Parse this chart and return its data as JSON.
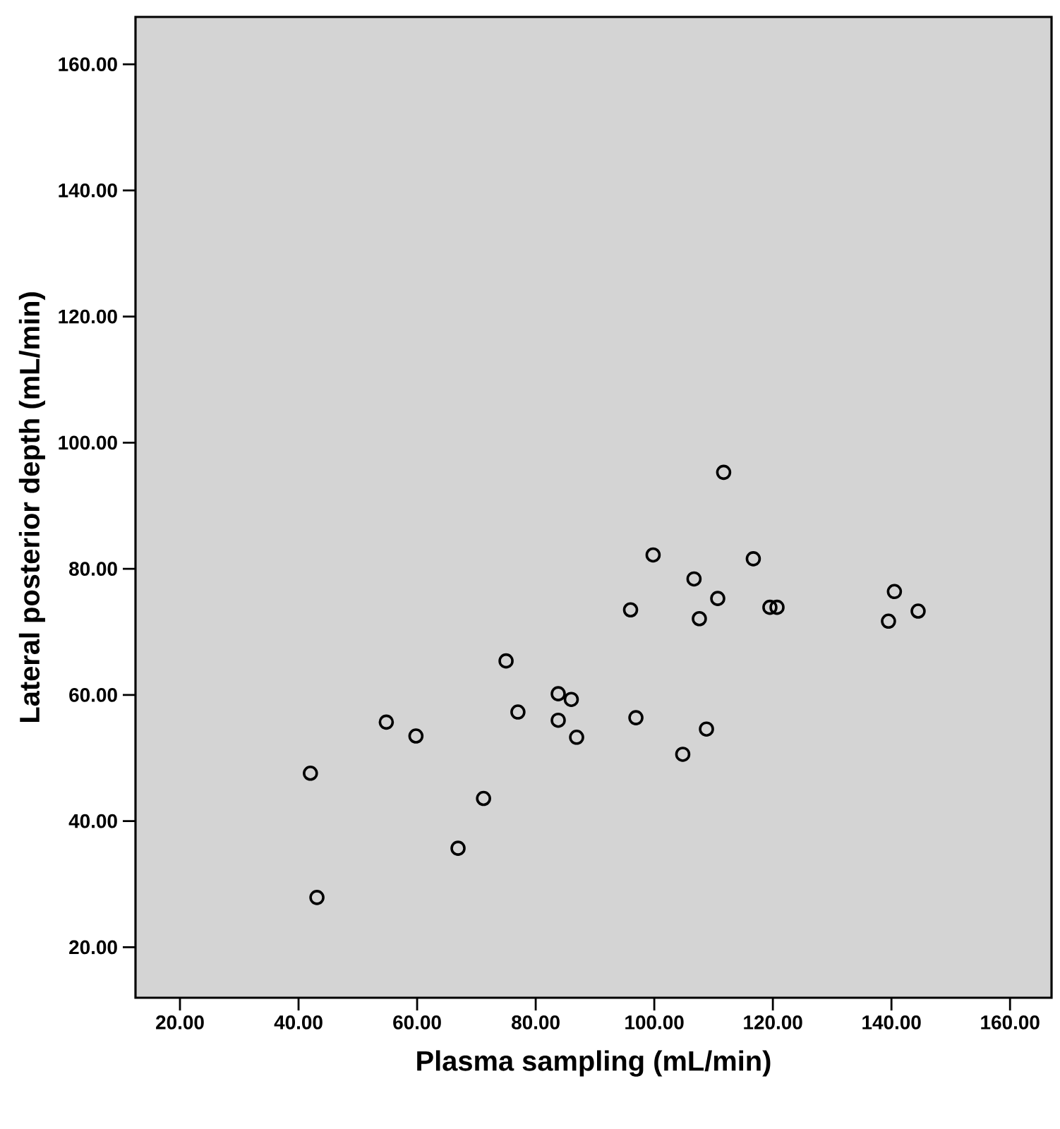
{
  "chart_data": {
    "type": "scatter",
    "xlabel": "Plasma sampling (mL/min)",
    "ylabel": "Lateral posterior depth (mL/min)",
    "xlim": [
      12.5,
      167
    ],
    "ylim": [
      12,
      167.5
    ],
    "xticks": [
      {
        "value": 20,
        "label": "20.00"
      },
      {
        "value": 40,
        "label": "40.00"
      },
      {
        "value": 60,
        "label": "60.00"
      },
      {
        "value": 80,
        "label": "80.00"
      },
      {
        "value": 100,
        "label": "100.00"
      },
      {
        "value": 120,
        "label": "120.00"
      },
      {
        "value": 140,
        "label": "140.00"
      },
      {
        "value": 160,
        "label": "160.00"
      }
    ],
    "yticks": [
      {
        "value": 20,
        "label": "20.00"
      },
      {
        "value": 40,
        "label": "40.00"
      },
      {
        "value": 60,
        "label": "60.00"
      },
      {
        "value": 80,
        "label": "80.00"
      },
      {
        "value": 100,
        "label": "100.00"
      },
      {
        "value": 120,
        "label": "120.00"
      },
      {
        "value": 140,
        "label": "140.00"
      },
      {
        "value": 160,
        "label": "160.00"
      }
    ],
    "x": [
      42,
      43.1,
      54.8,
      59.8,
      66.9,
      71.2,
      75,
      77,
      83.8,
      83.8,
      86,
      86.9,
      96,
      96.9,
      99.8,
      104.8,
      106.7,
      107.6,
      108.8,
      110.7,
      111.7,
      116.7,
      119.5,
      120.7,
      139.5,
      140.5,
      144.5
    ],
    "values": [
      47.6,
      27.9,
      55.7,
      53.5,
      35.7,
      43.6,
      65.4,
      57.3,
      60.2,
      56,
      59.3,
      53.3,
      73.5,
      56.4,
      82.2,
      50.6,
      78.4,
      72.1,
      54.6,
      75.3,
      95.3,
      81.6,
      73.9,
      73.9,
      71.7,
      76.4,
      73.3
    ],
    "color": "#000000",
    "marker": "circle",
    "grid": false
  }
}
